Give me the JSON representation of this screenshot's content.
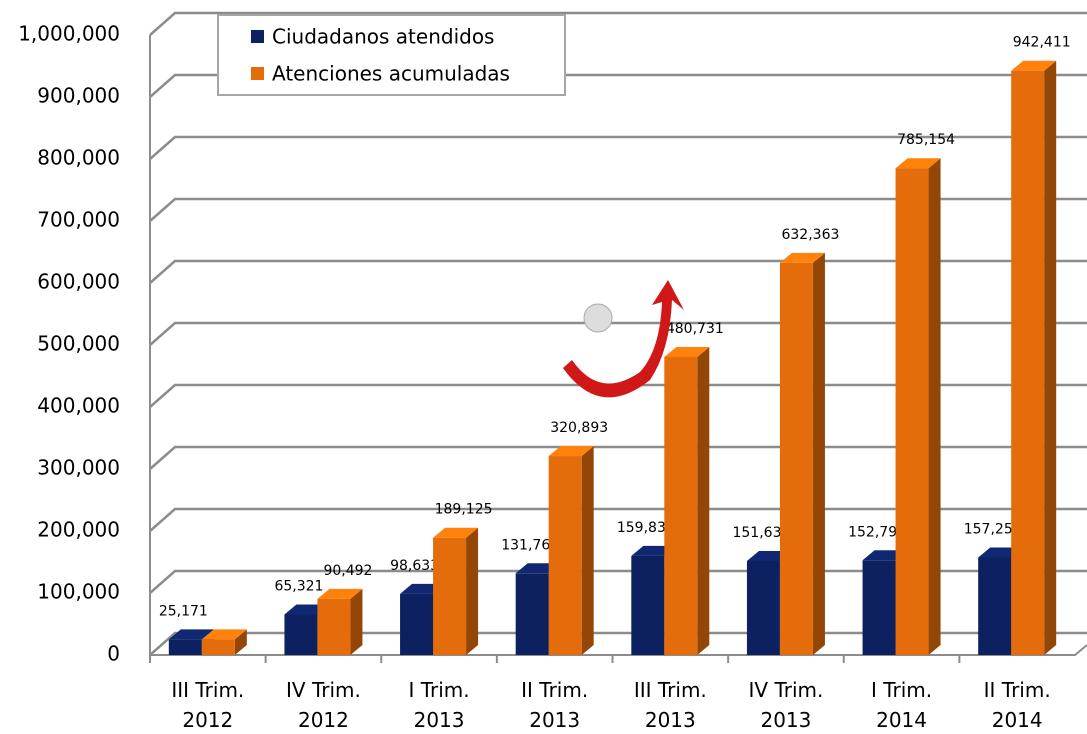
{
  "chart_data": {
    "type": "bar3d",
    "categories": [
      "III Trim. 2012",
      "IV Trim. 2012",
      "I Trim. 2013",
      "II Trim. 2013",
      "III Trim. 2013",
      "IV Trim. 2013",
      "I Trim. 2014",
      "II Trim. 2014"
    ],
    "series": [
      {
        "name": "Ciudadanos atendidos",
        "color": "#0d2160",
        "values": [
          25171,
          65321,
          98633,
          131768,
          159838,
          151632,
          152791,
          157257
        ],
        "value_labels": [
          "25,171",
          "65,321",
          "98,633",
          "131,768",
          "159,838",
          "151,632",
          "152,791",
          "157,257"
        ]
      },
      {
        "name": "Atenciones acumuladas",
        "color": "#e46c0a",
        "values": [
          25171,
          90492,
          189125,
          320893,
          480731,
          632363,
          785154,
          942411
        ],
        "value_labels": [
          null,
          "90,492",
          "189,125",
          "320,893",
          "480,731",
          "632,363",
          "785,154",
          "942,411"
        ]
      }
    ],
    "ylim": [
      0,
      1000000
    ],
    "yticks": [
      0,
      {
        "value": 100000,
        "label": "100,000"
      },
      {
        "value": 200000,
        "label": "200,000"
      },
      {
        "value": 300000,
        "label": "300,000"
      },
      {
        "value": 400000,
        "label": "400,000"
      },
      {
        "value": 500000,
        "label": "500,000"
      },
      {
        "value": 600000,
        "label": "600,000"
      },
      {
        "value": 700000,
        "label": "700,000"
      },
      {
        "value": 800000,
        "label": "800,000"
      },
      {
        "value": 900000,
        "label": "900,000"
      },
      {
        "value": 1000000,
        "label": "1,000,000"
      }
    ],
    "grid": true
  }
}
